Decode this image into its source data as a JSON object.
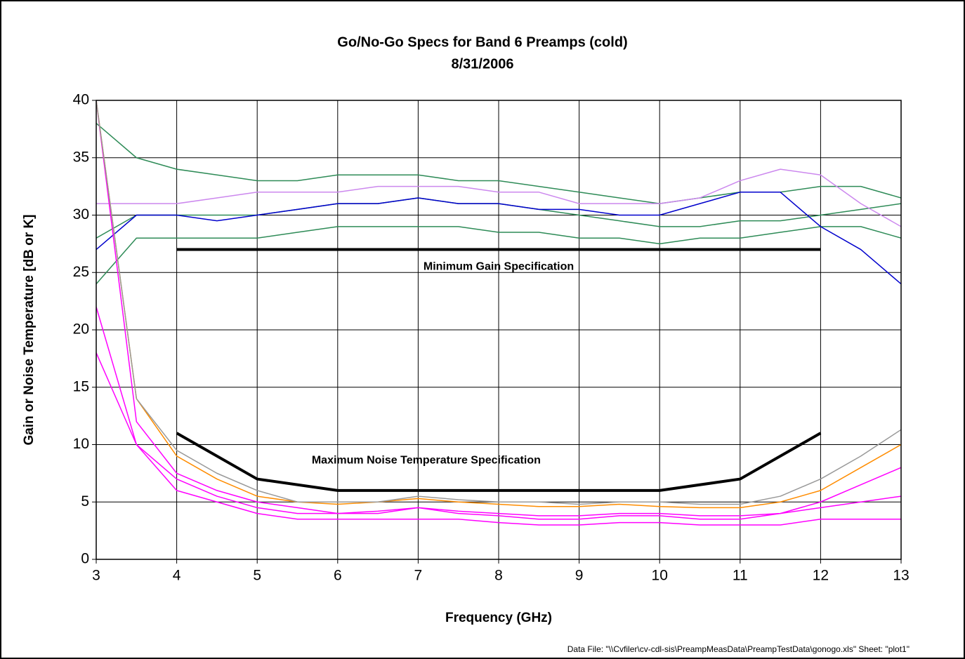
{
  "chart_data": {
    "type": "line",
    "title": "Go/No-Go Specs for Band 6 Preamps (cold)",
    "subtitle": "8/31/2006",
    "x_label": "Frequency (GHz)",
    "y_label": "Gain or Noise Temperature [dB or K]",
    "footnote": "Data File: \"\\\\Cvfiler\\cv-cdl-sis\\PreampMeasData\\PreampTestData\\gonogo.xls\"  Sheet: \"plot1\"",
    "xlim": [
      3,
      13
    ],
    "xticks": [
      3,
      4,
      5,
      6,
      7,
      8,
      9,
      10,
      11,
      12,
      13
    ],
    "ylim": [
      0,
      40
    ],
    "yticks": [
      0,
      5,
      10,
      15,
      20,
      25,
      30,
      35,
      40
    ],
    "grid": true,
    "x": [
      3,
      3.5,
      4,
      4.5,
      5,
      5.5,
      6,
      6.5,
      7,
      7.5,
      8,
      8.5,
      9,
      9.5,
      10,
      10.5,
      11,
      11.5,
      12,
      12.5,
      13
    ],
    "series": [
      {
        "color": "#2e8b57",
        "values": [
          38,
          35,
          34,
          33.5,
          33,
          33,
          33.5,
          33.5,
          33.5,
          33,
          33,
          32.5,
          32,
          31.5,
          31,
          31.5,
          32,
          32,
          32.5,
          32.5,
          31.5
        ]
      },
      {
        "color": "#2e8b57",
        "values": [
          28,
          30,
          30,
          30,
          30,
          30.5,
          31,
          31,
          31.5,
          31,
          31,
          30.5,
          30,
          29.5,
          29,
          29,
          29.5,
          29.5,
          30,
          30.5,
          31
        ]
      },
      {
        "color": "#2e8b57",
        "values": [
          24,
          28,
          28,
          28,
          28,
          28.5,
          29,
          29,
          29,
          29,
          28.5,
          28.5,
          28,
          28,
          27.5,
          28,
          28,
          28.5,
          29,
          29,
          28
        ]
      },
      {
        "color": "#0000cc",
        "values": [
          27,
          30,
          30,
          29.5,
          30,
          30.5,
          31,
          31,
          31.5,
          31,
          31,
          30.5,
          30.5,
          30,
          30,
          31,
          32,
          32,
          29,
          27,
          24
        ]
      },
      {
        "color": "#cc88ee",
        "values": [
          31,
          31,
          31,
          31.5,
          32,
          32,
          32,
          32.5,
          32.5,
          32.5,
          32,
          32,
          31,
          31,
          31,
          31.5,
          33,
          34,
          33.5,
          31,
          29
        ]
      },
      {
        "color": "#ff00ff",
        "values": [
          18,
          10,
          6,
          5,
          4,
          3.5,
          3.5,
          3.5,
          3.5,
          3.5,
          3.2,
          3,
          3,
          3.2,
          3.2,
          3,
          3,
          3,
          3.5,
          3.5,
          3.5
        ]
      },
      {
        "color": "#ff00ff",
        "values": [
          40,
          12,
          7.5,
          6,
          5,
          4.5,
          4,
          4.2,
          4.5,
          4.2,
          4,
          3.8,
          3.8,
          4,
          4,
          3.8,
          3.8,
          4,
          4.5,
          5,
          5.5
        ]
      },
      {
        "color": "#ff00ff",
        "values": [
          22,
          10,
          7,
          5.5,
          4.5,
          4,
          4,
          4,
          4.5,
          4,
          3.8,
          3.5,
          3.5,
          3.8,
          3.8,
          3.5,
          3.5,
          4,
          5,
          6.5,
          8
        ]
      },
      {
        "color": "#ff8c00",
        "values": [
          40,
          14,
          9,
          7,
          5.5,
          5,
          4.8,
          5,
          5.3,
          5,
          4.8,
          4.6,
          4.6,
          4.8,
          4.6,
          4.5,
          4.5,
          5,
          6,
          8,
          10
        ]
      },
      {
        "color": "#999999",
        "values": [
          40,
          14,
          9.5,
          7.5,
          6,
          5,
          5,
          5,
          5.5,
          5.2,
          5,
          5,
          4.8,
          5,
          5,
          4.8,
          4.8,
          5.5,
          7,
          9,
          11.3
        ]
      },
      {
        "color": "#000000",
        "width": 4,
        "x": [
          4,
          12
        ],
        "values": [
          27,
          27
        ]
      },
      {
        "color": "#000000",
        "width": 4,
        "x": [
          4,
          5,
          6,
          10,
          11,
          12
        ],
        "values": [
          11,
          7,
          6,
          6,
          7,
          11
        ]
      }
    ],
    "annotations": [
      {
        "text": "Minimum Gain Specification",
        "x": 8,
        "y": 25.5
      },
      {
        "text": "Maximum Noise Temperature Specification",
        "x": 7.1,
        "y": 8.6
      }
    ]
  }
}
